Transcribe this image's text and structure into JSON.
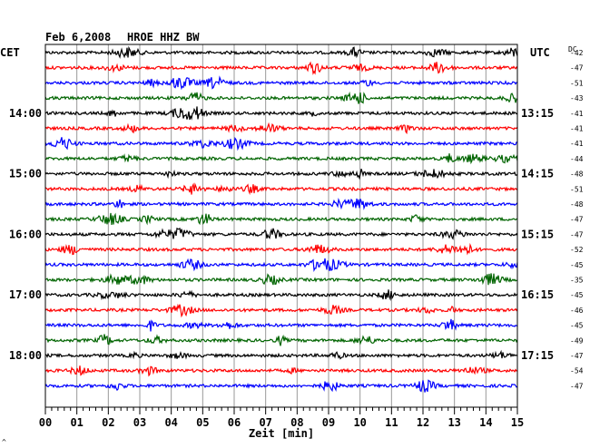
{
  "chart_data": {
    "type": "line",
    "title": "Feb 6,2008",
    "station": "HROE HHZ BW",
    "left_axis_label": "CET",
    "right_axis_label": "UTC",
    "dc_label": "DC",
    "xlabel": "Zeit [min]",
    "xlim": [
      0,
      15
    ],
    "x_ticks": [
      "00",
      "01",
      "02",
      "03",
      "04",
      "05",
      "06",
      "07",
      "08",
      "09",
      "10",
      "11",
      "12",
      "13",
      "14",
      "15"
    ],
    "grid": true,
    "trace_colors": [
      "#000000",
      "#ff0000",
      "#0000ff",
      "#006400"
    ],
    "cet_hour_labels": [
      {
        "row": 4,
        "label": "14:00"
      },
      {
        "row": 8,
        "label": "15:00"
      },
      {
        "row": 12,
        "label": "16:00"
      },
      {
        "row": 16,
        "label": "17:00"
      },
      {
        "row": 20,
        "label": "18:00"
      }
    ],
    "utc_labels": [
      {
        "row": 4,
        "label": "13:15"
      },
      {
        "row": 8,
        "label": "14:15"
      },
      {
        "row": 12,
        "label": "15:15"
      },
      {
        "row": 16,
        "label": "16:15"
      },
      {
        "row": 20,
        "label": "17:15"
      }
    ],
    "dc_offsets": [
      -42,
      -47,
      -51,
      -43,
      -41,
      -41,
      -41,
      -44,
      -48,
      -51,
      -48,
      -47,
      -47,
      -52,
      -45,
      -35,
      -45,
      -46,
      -45,
      -49,
      -47,
      -54,
      -47
    ],
    "rows": 23
  },
  "corner_mark": "^"
}
